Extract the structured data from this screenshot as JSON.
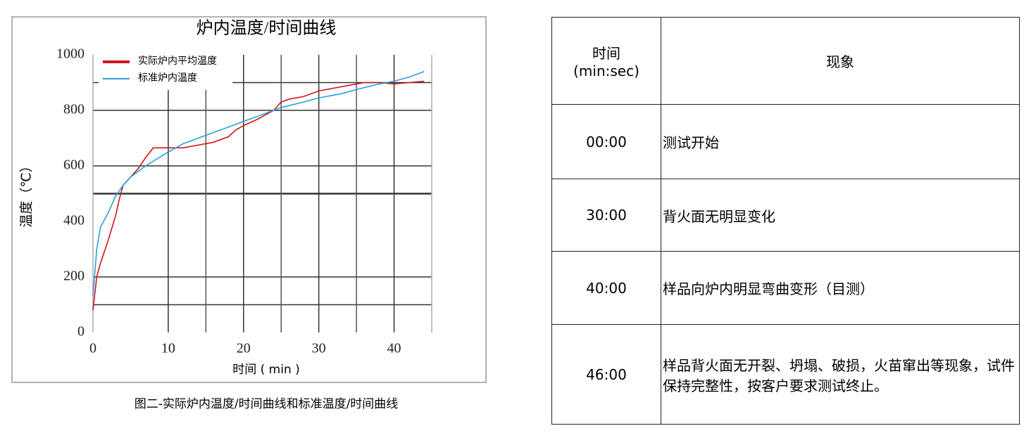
{
  "chart_data": {
    "type": "line",
    "title": "炉内温度/时间曲线",
    "x_label": "时间 ( min )",
    "y_label": "温度（℃）",
    "xlim": [
      0,
      45
    ],
    "ylim": [
      0,
      1000
    ],
    "xticks": [
      0,
      10,
      20,
      30,
      40
    ],
    "yticks": [
      0,
      200,
      400,
      600,
      800,
      1000
    ],
    "grid_x": [
      10,
      15,
      20,
      25,
      30,
      35,
      40
    ],
    "grid_y": [
      100,
      200,
      500,
      600,
      800,
      900
    ],
    "series": [
      {
        "name": "实际炉内平均温度",
        "color": "#d0141c",
        "x": [
          0,
          0.5,
          1,
          2,
          3,
          3.5,
          4,
          5,
          6,
          7,
          8,
          9,
          10,
          12,
          14,
          16,
          18,
          19,
          20,
          22,
          24,
          25,
          26,
          28,
          30,
          32,
          34,
          36,
          38,
          40,
          42,
          44
        ],
        "values": [
          80,
          200,
          250,
          330,
          420,
          480,
          530,
          560,
          590,
          630,
          665,
          665,
          665,
          665,
          675,
          685,
          705,
          730,
          745,
          770,
          800,
          830,
          840,
          850,
          870,
          880,
          890,
          900,
          900,
          895,
          900,
          905
        ]
      },
      {
        "name": "标准炉内温度",
        "color": "#2aa0dc",
        "x": [
          0,
          0.5,
          1,
          2,
          3,
          4,
          5,
          7,
          10,
          12,
          15,
          18,
          20,
          23,
          25,
          28,
          30,
          33,
          35,
          38,
          40,
          42,
          44
        ],
        "values": [
          130,
          300,
          380,
          430,
          490,
          530,
          560,
          600,
          650,
          680,
          710,
          740,
          760,
          790,
          810,
          830,
          845,
          860,
          875,
          895,
          905,
          920,
          940
        ]
      }
    ]
  },
  "caption": "图二-实际炉内温度/时间曲线和标准温度/时间曲线",
  "table": {
    "header_time": [
      "时间",
      "(min:sec)"
    ],
    "header_event": "现象",
    "rows": [
      [
        "00:00",
        "测试开始"
      ],
      [
        "30:00",
        "背火面无明显变化"
      ],
      [
        "40:00",
        "样品向炉内明显弯曲变形（目测）"
      ],
      [
        "46:00",
        "样品背火面无开裂、坍塌、破损，火苗窜出等现象，试件保持完整性，按客户要求测试终止。"
      ]
    ]
  }
}
